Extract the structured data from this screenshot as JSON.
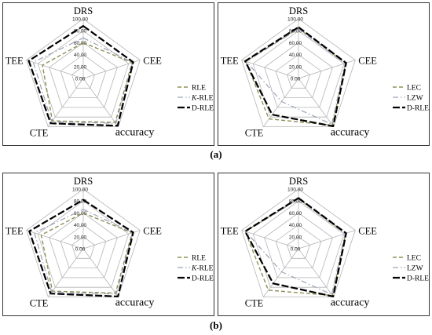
{
  "figure": {
    "label_a": "(a)",
    "label_b": "(b)"
  },
  "colors": {
    "grid": "#b5b5b5",
    "RLE": "#8f8f55",
    "LEC": "#8f8f55",
    "K-RLE": "#9aa3b8",
    "LZW": "#9aa3b8",
    "D-RLE": "#000000"
  },
  "chart_data": [
    {
      "type": "radar",
      "axes": [
        "DRS",
        "CEE",
        "accuracy",
        "CTE",
        "TEE"
      ],
      "ticks": [
        "0.00",
        "20.00",
        "40.00",
        "60.00",
        "80.00",
        "100.00"
      ],
      "rlim": [
        0,
        100
      ],
      "legend_position": "right",
      "series": [
        {
          "name": "RLE",
          "legend_prefix": "",
          "legend_italic": "",
          "legend_suffix": "RLE",
          "style": "dash",
          "values": [
            60,
            86,
            91,
            88,
            72
          ]
        },
        {
          "name": "K-RLE",
          "legend_prefix": "",
          "legend_italic": "K",
          "legend_suffix": "-RLE",
          "style": "dashdot",
          "values": [
            68,
            87,
            93,
            90,
            88
          ]
        },
        {
          "name": "D-RLE",
          "legend_prefix": "",
          "legend_italic": "",
          "legend_suffix": "D-RLE",
          "style": "longdash",
          "values": [
            88,
            88,
            98,
            93,
            96
          ]
        }
      ]
    },
    {
      "type": "radar",
      "axes": [
        "DRS",
        "CEE",
        "accuracy",
        "CTE",
        "TEE"
      ],
      "ticks": [
        "0.00",
        "20.00",
        "40.00",
        "60.00",
        "80.00",
        "100.00"
      ],
      "rlim": [
        0,
        100
      ],
      "legend_position": "right",
      "series": [
        {
          "name": "LEC",
          "legend_prefix": "",
          "legend_italic": "",
          "legend_suffix": "LEC",
          "style": "dash",
          "values": [
            84,
            83,
            97,
            84,
            93
          ]
        },
        {
          "name": "LZW",
          "legend_prefix": "",
          "legend_italic": "",
          "legend_suffix": "LZW",
          "style": "dashdot",
          "values": [
            83,
            82,
            95,
            48,
            92
          ]
        },
        {
          "name": "D-RLE",
          "legend_prefix": "",
          "legend_italic": "",
          "legend_suffix": "D-RLE",
          "style": "longdash",
          "values": [
            86,
            84,
            99,
            75,
            94
          ]
        }
      ]
    },
    {
      "type": "radar",
      "axes": [
        "DRS",
        "CEE",
        "accuracy",
        "CTE",
        "TEE"
      ],
      "ticks": [
        "0.00",
        "20.00",
        "40.00",
        "60.00",
        "80.00",
        "100.00"
      ],
      "rlim": [
        0,
        100
      ],
      "legend_position": "right",
      "series": [
        {
          "name": "RLE",
          "legend_prefix": "",
          "legend_italic": "",
          "legend_suffix": "RLE",
          "style": "dash",
          "values": [
            60,
            86,
            92,
            88,
            74
          ]
        },
        {
          "name": "K-RLE",
          "legend_prefix": "",
          "legend_italic": "K",
          "legend_suffix": "-RLE",
          "style": "dashdot",
          "values": [
            66,
            87,
            94,
            90,
            86
          ]
        },
        {
          "name": "D-RLE",
          "legend_prefix": "",
          "legend_italic": "",
          "legend_suffix": "D-RLE",
          "style": "longdash",
          "values": [
            82,
            88,
            99,
            93,
            95
          ]
        }
      ]
    },
    {
      "type": "radar",
      "axes": [
        "DRS",
        "CEE",
        "accuracy",
        "CTE",
        "TEE"
      ],
      "ticks": [
        "0.00",
        "20.00",
        "40.00",
        "60.00",
        "80.00",
        "100.00"
      ],
      "rlim": [
        0,
        100
      ],
      "legend_position": "right",
      "series": [
        {
          "name": "LEC",
          "legend_prefix": "",
          "legend_italic": "",
          "legend_suffix": "LEC",
          "style": "dash",
          "values": [
            84,
            83,
            97,
            86,
            94
          ]
        },
        {
          "name": "LZW",
          "legend_prefix": "",
          "legend_italic": "",
          "legend_suffix": "LZW",
          "style": "dashdot",
          "values": [
            83,
            82,
            95,
            48,
            93
          ]
        },
        {
          "name": "D-RLE",
          "legend_prefix": "",
          "legend_italic": "",
          "legend_suffix": "D-RLE",
          "style": "longdash",
          "values": [
            85,
            84,
            99,
            72,
            94
          ]
        }
      ]
    }
  ]
}
